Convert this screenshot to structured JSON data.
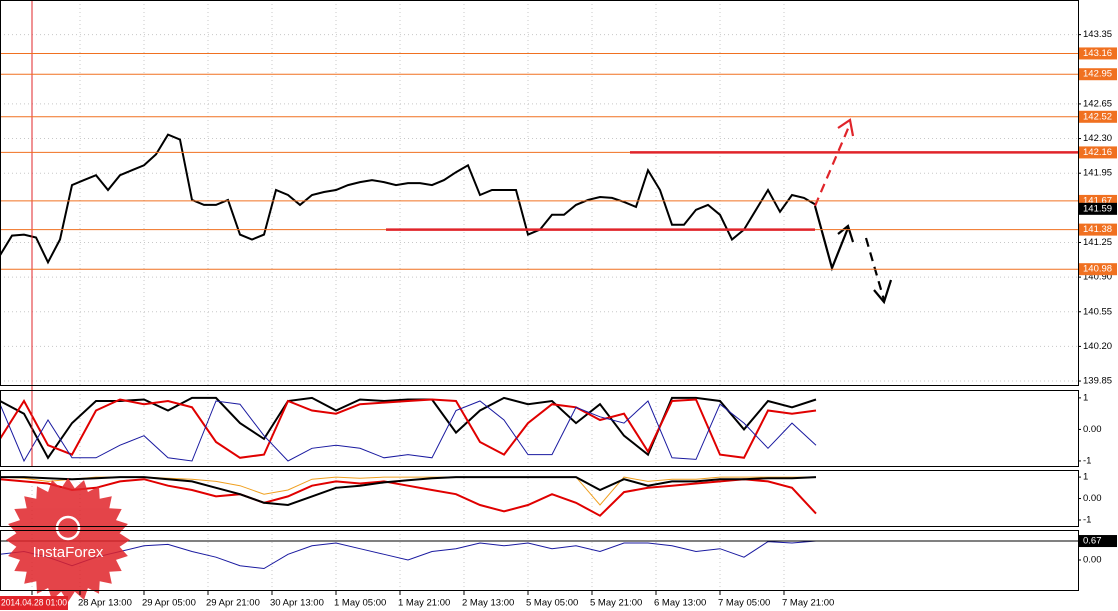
{
  "chart_data": [
    {
      "type": "line",
      "x": [
        -8,
        -5,
        -2,
        1,
        4,
        7,
        10,
        13,
        16,
        19,
        22,
        25,
        28,
        31,
        34,
        37,
        40,
        43,
        46,
        49,
        52,
        55,
        58,
        61,
        64,
        67,
        70,
        73,
        76,
        79,
        82,
        85,
        88,
        91,
        94,
        97,
        100,
        103,
        106,
        109,
        112,
        115,
        118,
        121,
        124,
        127,
        130,
        133,
        136,
        139,
        142,
        145,
        148,
        151,
        154,
        157,
        160,
        163,
        166,
        169,
        172,
        175,
        178,
        181,
        184,
        187,
        190,
        193,
        196
      ],
      "series": [
        {
          "color": "#000000",
          "values": [
            141.12,
            141.32,
            141.33,
            141.3,
            141.05,
            141.28,
            141.83,
            141.88,
            141.93,
            141.78,
            141.93,
            141.98,
            142.03,
            142.14,
            142.34,
            142.29,
            141.68,
            141.63,
            141.63,
            141.68,
            141.33,
            141.28,
            141.33,
            141.78,
            141.73,
            141.63,
            141.73,
            141.76,
            141.78,
            141.83,
            141.86,
            141.88,
            141.86,
            141.83,
            141.85,
            141.85,
            141.83,
            141.88,
            141.96,
            142.03,
            141.73,
            141.78,
            141.78,
            141.78,
            141.33,
            141.38,
            141.53,
            141.53,
            141.63,
            141.68,
            141.71,
            141.7,
            141.66,
            141.61,
            141.98,
            141.78,
            141.43,
            141.43,
            141.58,
            141.63,
            141.53,
            141.28,
            141.38,
            141.58,
            141.78,
            141.56,
            141.73,
            141.7,
            141.63
          ]
        }
      ],
      "xlim": [
        -8,
        261.5
      ],
      "ylim": [
        139.81,
        143.7
      ],
      "yticks": [
        143.35,
        {
          "value": 142.65,
          "label": "142.65"
        },
        {
          "value": 142.3,
          "label": "142.30"
        },
        141.95,
        141.25,
        {
          "value": 140.9,
          "label": "140.90"
        },
        140.55,
        {
          "value": 140.2,
          "label": "140.20"
        },
        139.85
      ],
      "xticks": [
        {
          "value": 0,
          "label": "2014.04.28 01:00"
        },
        {
          "value": 12,
          "label": "28 Apr 13:00"
        },
        {
          "value": 28,
          "label": "29 Apr 05:00"
        },
        {
          "value": 44,
          "label": "29 Apr 21:00"
        },
        {
          "value": 60,
          "label": "30 Apr 13:00"
        },
        {
          "value": 76,
          "label": "1 May 05:00"
        },
        {
          "value": 92,
          "label": "1 May 21:00"
        },
        {
          "value": 108,
          "label": "2 May 13:00"
        },
        {
          "value": 124,
          "label": "5 May 05:00"
        },
        {
          "value": 140,
          "label": "5 May 21:00"
        },
        {
          "value": 156,
          "label": "6 May 13:00"
        },
        {
          "value": 172,
          "label": "7 May 05:00"
        },
        {
          "value": 188,
          "label": "7 May 21:00"
        }
      ],
      "grid": true,
      "levels": {
        "color": "#f07020",
        "values": [
          143.16,
          142.95,
          142.52,
          142.16,
          141.67,
          141.38,
          140.98
        ]
      },
      "current_value": 141.59,
      "lines": {
        "color": "#e0242a",
        "items": [
          {
            "value": 142.16,
            "x": [
              149.5,
              261.5
            ]
          },
          {
            "value": 141.38,
            "x": [
              88.5,
              195.75
            ]
          }
        ]
      },
      "watermark": "InstaForex"
    },
    {
      "type": "line",
      "x": [
        -8,
        -2,
        4,
        10,
        16,
        22,
        28,
        34,
        40,
        46,
        52,
        58,
        64,
        70,
        76,
        82,
        88,
        94,
        100,
        106,
        112,
        118,
        124,
        130,
        136,
        142,
        148,
        154,
        160,
        166,
        172,
        178,
        184,
        190,
        196
      ],
      "xlim": [
        -8,
        261.5
      ],
      "ylim": [
        -1.16,
        1.25
      ],
      "yticks": [
        1,
        {
          "value": 0,
          "label": "0.00"
        },
        -1
      ],
      "series": [
        {
          "color": "#000000",
          "values": [
            0.9,
            0.5,
            -0.9,
            0.2,
            0.9,
            0.9,
            0.95,
            0.6,
            1,
            1,
            0.2,
            -0.3,
            0.9,
            1,
            0.6,
            0.95,
            0.9,
            0.95,
            0.95,
            -0.1,
            0.6,
            1,
            0.8,
            0.9,
            0.2,
            0.8,
            -0.2,
            -0.8,
            1,
            1,
            0.9,
            0,
            0.9,
            0.7,
            0.95
          ]
        },
        {
          "color": "#e00000",
          "values": [
            -0.3,
            0.9,
            -0.5,
            -0.8,
            0.6,
            0.95,
            0.8,
            0.9,
            0.7,
            -0.4,
            -0.9,
            -0.8,
            0.9,
            0.6,
            0.5,
            0.8,
            0.85,
            0.9,
            0.95,
            0.9,
            -0.4,
            -0.8,
            0.2,
            0.8,
            0.7,
            0.3,
            0.5,
            -0.7,
            0.9,
            0.95,
            -0.8,
            -0.9,
            0.6,
            0.5,
            0.6
          ]
        },
        {
          "color": "#1a1aa0",
          "values": [
            0.8,
            -1,
            0.3,
            -0.9,
            -0.9,
            -0.5,
            -0.2,
            -0.9,
            -1,
            0.9,
            0.8,
            -0.2,
            -1,
            -0.6,
            -0.5,
            -0.6,
            -0.9,
            -0.8,
            -0.9,
            0.6,
            0.9,
            0.3,
            -0.8,
            -0.8,
            0.7,
            0.4,
            0.2,
            0.9,
            -0.9,
            -0.95,
            0.8,
            0.2,
            -0.6,
            0.2,
            -0.5
          ]
        }
      ]
    },
    {
      "type": "line",
      "x": [
        -8,
        -2,
        4,
        10,
        16,
        22,
        28,
        34,
        40,
        46,
        52,
        58,
        64,
        70,
        76,
        82,
        88,
        94,
        100,
        106,
        112,
        118,
        124,
        130,
        136,
        142,
        148,
        154,
        160,
        166,
        172,
        178,
        184,
        190,
        196
      ],
      "xlim": [
        -8,
        261.5
      ],
      "ylim": [
        -1.28,
        1.33
      ],
      "yticks": [
        1,
        {
          "value": 0,
          "label": "0.00"
        },
        -1
      ],
      "series": [
        {
          "color": "#f0a020",
          "values": [
            1,
            0.95,
            0.8,
            0.9,
            1,
            1,
            1,
            0.95,
            0.9,
            0.8,
            0.6,
            0.2,
            0.4,
            0.9,
            1,
            0.95,
            1,
            1,
            1,
            1,
            1,
            1,
            1,
            1,
            1,
            -0.3,
            1,
            0.8,
            0.9,
            0.9,
            1,
            1,
            1,
            1,
            1
          ]
        },
        {
          "color": "#e00000",
          "values": [
            0.9,
            0.8,
            0.7,
            0.4,
            0.5,
            0.8,
            0.9,
            0.6,
            0.4,
            0.1,
            0.2,
            -0.2,
            0.1,
            0.6,
            0.8,
            0.7,
            0.8,
            0.6,
            0.4,
            0.2,
            -0.3,
            -0.6,
            -0.3,
            0.2,
            -0.2,
            -0.8,
            0.3,
            0.5,
            0.6,
            0.7,
            0.8,
            0.9,
            0.8,
            0.5,
            -0.7
          ]
        },
        {
          "color": "#000000",
          "values": [
            1,
            1,
            0.95,
            0.9,
            0.95,
            1,
            1,
            0.9,
            0.8,
            0.5,
            0.2,
            -0.2,
            -0.3,
            0.1,
            0.5,
            0.6,
            0.75,
            0.85,
            0.95,
            1,
            1,
            1,
            1,
            1,
            1,
            0.4,
            0.9,
            0.6,
            0.8,
            0.8,
            0.9,
            0.9,
            0.95,
            0.95,
            1
          ]
        }
      ]
    },
    {
      "type": "line",
      "x": [
        -8,
        -2,
        4,
        10,
        16,
        22,
        28,
        34,
        40,
        46,
        52,
        58,
        64,
        70,
        76,
        82,
        88,
        94,
        100,
        106,
        112,
        118,
        124,
        130,
        136,
        142,
        148,
        154,
        160,
        166,
        172,
        178,
        184,
        190,
        196
      ],
      "xlim": [
        -8,
        261.5
      ],
      "ylim": [
        -1.06,
        1.06
      ],
      "yticks": [
        {
          "value": 0,
          "label": "0.00"
        }
      ],
      "current_value": 0.67,
      "series": [
        {
          "color": "#1a1aa0",
          "values": [
            0.2,
            0.3,
            0.1,
            -0.2,
            0.1,
            0.3,
            0.5,
            0.55,
            0.3,
            0.1,
            -0.2,
            -0.3,
            0.2,
            0.5,
            0.6,
            0.4,
            0.2,
            0.0,
            0.3,
            0.4,
            0.6,
            0.5,
            0.6,
            0.4,
            0.5,
            0.3,
            0.6,
            0.6,
            0.5,
            0.3,
            0.4,
            0.1,
            0.65,
            0.6,
            0.67
          ]
        }
      ]
    }
  ]
}
